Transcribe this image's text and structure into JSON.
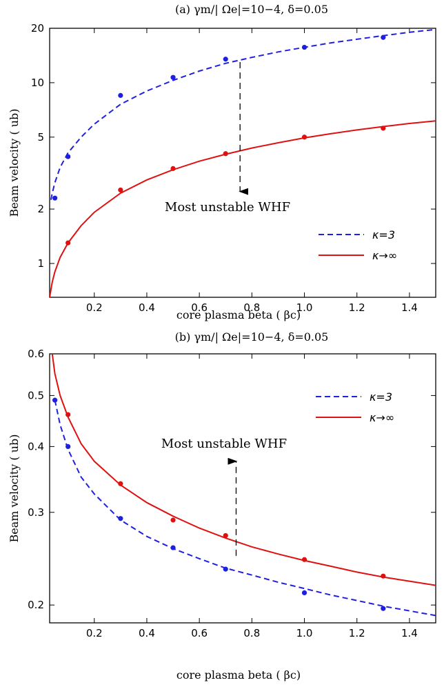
{
  "chart_data": [
    {
      "type": "line",
      "title": "(a) γm/| Ωe|=10−4, δ=0.05",
      "xlabel": "core plasma beta ( βc)",
      "ylabel": "Beam velocity ( ub)",
      "xlim": [
        0.03,
        1.5
      ],
      "ylim": [
        0.65,
        20
      ],
      "yscale": "log",
      "x_ticks": [
        "0.2",
        "0.4",
        "0.6",
        "0.8",
        "1.0",
        "1.2",
        "1.4"
      ],
      "y_ticks": [
        "1",
        "2",
        "5",
        "10",
        "20"
      ],
      "annotation": "Most unstable WHF",
      "arrow_direction": "down",
      "legend_position": "right",
      "colors": {
        "kappa3": "#1f1fe0",
        "kinf": "#e01010"
      },
      "series": [
        {
          "name": "κ=3",
          "style": "dashed",
          "points_x": [
            0.05,
            0.1,
            0.3,
            0.5,
            0.7,
            1.0,
            1.3
          ],
          "points_y": [
            2.3,
            3.9,
            8.5,
            10.7,
            13.5,
            15.7,
            17.8
          ],
          "curve_x": [
            0.035,
            0.04,
            0.05,
            0.07,
            0.1,
            0.15,
            0.2,
            0.3,
            0.4,
            0.5,
            0.6,
            0.7,
            0.8,
            0.9,
            1.0,
            1.1,
            1.2,
            1.3,
            1.4,
            1.5
          ],
          "curve_y": [
            2.25,
            2.45,
            2.8,
            3.4,
            4.1,
            5.0,
            5.9,
            7.6,
            9.0,
            10.3,
            11.6,
            12.8,
            13.8,
            14.8,
            15.7,
            16.6,
            17.4,
            18.2,
            19.0,
            19.7
          ]
        },
        {
          "name": "κ→∞",
          "style": "solid",
          "points_x": [
            0.1,
            0.3,
            0.5,
            0.7,
            1.0,
            1.3
          ],
          "points_y": [
            1.3,
            2.55,
            3.35,
            4.05,
            5.0,
            5.6
          ],
          "curve_x": [
            0.03,
            0.04,
            0.05,
            0.07,
            0.1,
            0.15,
            0.2,
            0.3,
            0.4,
            0.5,
            0.6,
            0.7,
            0.8,
            0.9,
            1.0,
            1.1,
            1.2,
            1.3,
            1.4,
            1.5
          ],
          "curve_y": [
            0.65,
            0.79,
            0.9,
            1.08,
            1.3,
            1.62,
            1.92,
            2.45,
            2.9,
            3.3,
            3.68,
            4.02,
            4.35,
            4.65,
            4.95,
            5.22,
            5.48,
            5.72,
            5.95,
            6.15
          ]
        }
      ]
    },
    {
      "type": "line",
      "title": "(b) γm/| Ωe|=10−4, δ=0.05",
      "xlabel": "core plasma beta ( βc)",
      "ylabel": "Beam velocity ( ub)",
      "xlim": [
        0.03,
        1.5
      ],
      "ylim": [
        0.185,
        0.6
      ],
      "yscale": "log",
      "x_ticks": [
        "0.2",
        "0.4",
        "0.6",
        "0.8",
        "1.0",
        "1.2",
        "1.4"
      ],
      "y_ticks": [
        "0.2",
        "0.3",
        "0.4",
        "0.5",
        "0.6"
      ],
      "annotation": "Most unstable WHF",
      "arrow_direction": "up",
      "legend_position": "top-right",
      "colors": {
        "kappa3": "#1f1fe0",
        "kinf": "#e01010"
      },
      "series": [
        {
          "name": "κ=3",
          "style": "dashed",
          "points_x": [
            0.05,
            0.1,
            0.3,
            0.5,
            0.7,
            1.0,
            1.3
          ],
          "points_y": [
            0.49,
            0.4,
            0.292,
            0.257,
            0.234,
            0.211,
            0.197
          ],
          "curve_x": [
            0.05,
            0.07,
            0.1,
            0.15,
            0.2,
            0.3,
            0.4,
            0.5,
            0.6,
            0.7,
            0.8,
            0.9,
            1.0,
            1.1,
            1.2,
            1.3,
            1.4,
            1.5
          ],
          "curve_y": [
            0.49,
            0.44,
            0.395,
            0.35,
            0.325,
            0.29,
            0.27,
            0.256,
            0.245,
            0.235,
            0.228,
            0.221,
            0.215,
            0.209,
            0.204,
            0.199,
            0.195,
            0.191
          ]
        },
        {
          "name": "κ→∞",
          "style": "solid",
          "points_x": [
            0.1,
            0.3,
            0.5,
            0.7,
            1.0,
            1.3
          ],
          "points_y": [
            0.46,
            0.34,
            0.29,
            0.271,
            0.244,
            0.227
          ],
          "curve_x": [
            0.04,
            0.05,
            0.07,
            0.1,
            0.15,
            0.2,
            0.3,
            0.4,
            0.5,
            0.6,
            0.7,
            0.8,
            0.9,
            1.0,
            1.1,
            1.2,
            1.3,
            1.4,
            1.5
          ],
          "curve_y": [
            0.6,
            0.55,
            0.5,
            0.455,
            0.405,
            0.375,
            0.338,
            0.313,
            0.295,
            0.28,
            0.268,
            0.258,
            0.25,
            0.243,
            0.237,
            0.231,
            0.226,
            0.222,
            0.218
          ]
        }
      ]
    }
  ]
}
